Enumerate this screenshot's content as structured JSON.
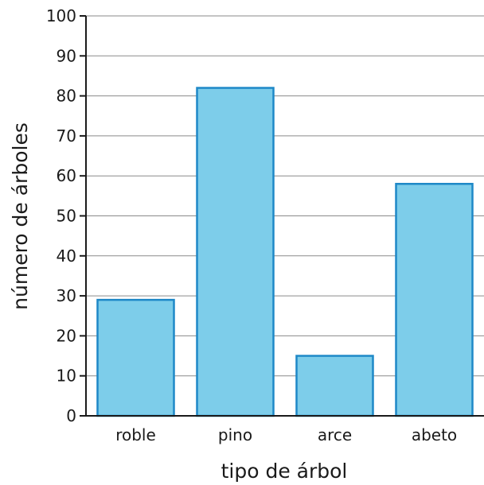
{
  "chart_data": {
    "type": "bar",
    "categories": [
      "roble",
      "pino",
      "arce",
      "abeto"
    ],
    "values": [
      29,
      82,
      15,
      58
    ],
    "xlabel": "tipo de árbol",
    "ylabel": "número de árboles",
    "ylim": [
      0,
      100
    ],
    "yticks": [
      0,
      10,
      20,
      30,
      40,
      50,
      60,
      70,
      80,
      90,
      100
    ],
    "grid": true,
    "colors": {
      "bar_fill": "#7dcdea",
      "bar_stroke": "#1e88c7"
    }
  }
}
